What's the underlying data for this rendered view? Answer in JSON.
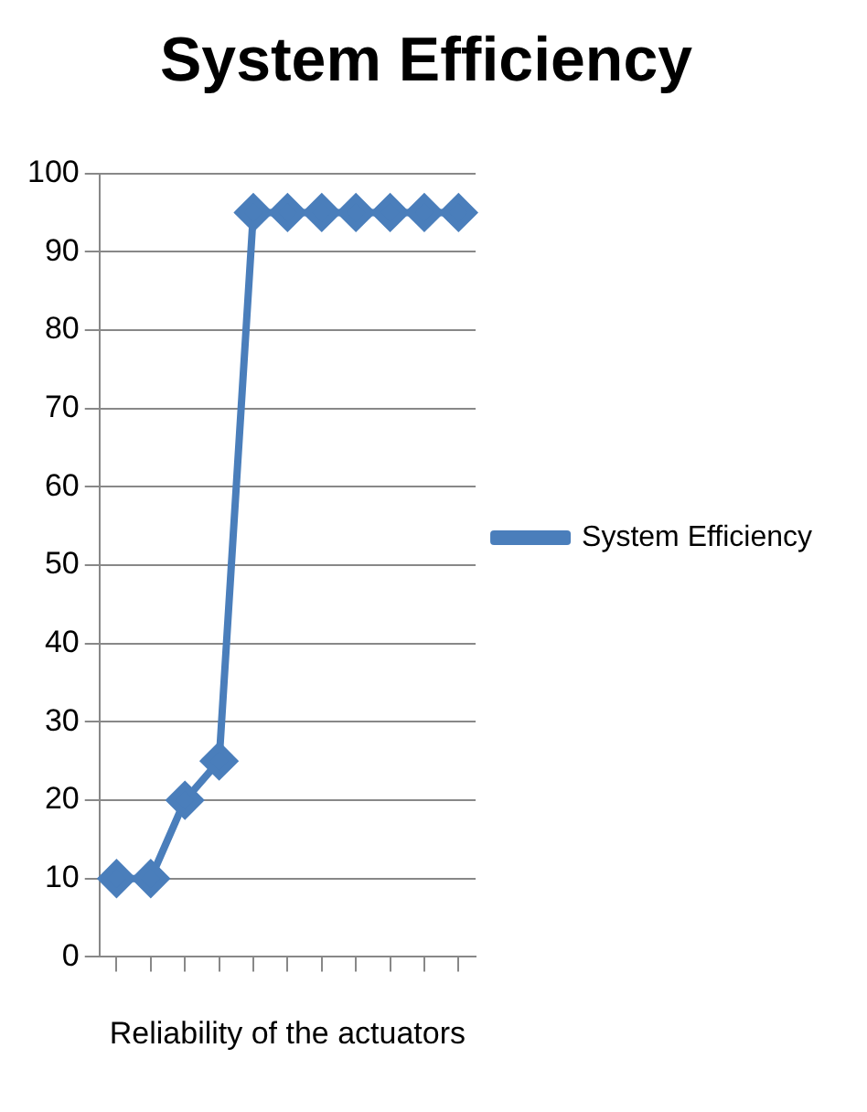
{
  "chart_data": {
    "type": "line",
    "title": "System Efficiency",
    "xlabel": "Reliability of the actuators",
    "categories": [
      null,
      null,
      null,
      null,
      null,
      null,
      null,
      null,
      null,
      null,
      null
    ],
    "series": [
      {
        "name": "System Efficiency",
        "color": "#4a7ebb",
        "values": [
          10,
          10,
          20,
          25,
          95,
          95,
          95,
          95,
          95,
          95,
          95
        ]
      }
    ],
    "ylim": [
      0,
      100
    ],
    "yticks": [
      0,
      10,
      20,
      30,
      40,
      50,
      60,
      70,
      80,
      90,
      100
    ],
    "grid": "y",
    "legend": "right",
    "marker": "diamond",
    "line_style": "solid"
  }
}
